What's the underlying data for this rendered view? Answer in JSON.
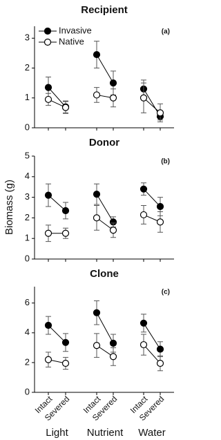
{
  "chart_data": {
    "type": "line",
    "y_label": "Biomass (g)",
    "legend": "upper left",
    "categories": [
      "Intact",
      "Severed",
      "Intact",
      "Severed",
      "Intact",
      "Severed"
    ],
    "groups": [
      "Light",
      "Nutrient",
      "Water"
    ],
    "series": [
      {
        "name": "Invasive",
        "color": "#000000",
        "marker": "filled"
      },
      {
        "name": "Native",
        "color": "#000000",
        "marker": "open"
      }
    ],
    "panels": [
      {
        "title": "Recipient",
        "label": "(a)",
        "ylim": [
          0,
          3.4
        ],
        "yticks": [
          0,
          1,
          2,
          3
        ],
        "series": [
          {
            "values": [
              1.35,
              0.7,
              2.45,
              1.5,
              1.3,
              0.38
            ],
            "errors": [
              0.35,
              0.2,
              0.45,
              0.4,
              0.3,
              0.12
            ]
          },
          {
            "values": [
              0.95,
              0.68,
              1.1,
              1.0,
              1.0,
              0.5
            ],
            "errors": [
              0.2,
              0.2,
              0.25,
              0.3,
              0.5,
              0.3
            ]
          }
        ]
      },
      {
        "title": "Donor",
        "label": "(b)",
        "ylim": [
          0,
          5
        ],
        "yticks": [
          0,
          1,
          2,
          3,
          4,
          5
        ],
        "series": [
          {
            "values": [
              3.1,
              2.35,
              3.15,
              1.8,
              3.4,
              2.55
            ],
            "errors": [
              0.55,
              0.4,
              0.5,
              0.25,
              0.3,
              0.45
            ]
          },
          {
            "values": [
              1.25,
              1.25,
              2.0,
              1.4,
              2.15,
              1.8
            ],
            "errors": [
              0.4,
              0.25,
              0.6,
              0.35,
              0.45,
              0.5
            ]
          }
        ]
      },
      {
        "title": "Clone",
        "label": "(c)",
        "ylim": [
          0,
          7.1
        ],
        "yticks": [
          0,
          2,
          4,
          6
        ],
        "series": [
          {
            "values": [
              4.5,
              3.35,
              5.35,
              3.3,
              4.65,
              2.9
            ],
            "errors": [
              0.6,
              0.6,
              0.8,
              0.6,
              0.6,
              0.5
            ]
          },
          {
            "values": [
              2.2,
              1.95,
              3.15,
              2.4,
              3.2,
              1.95
            ],
            "errors": [
              0.5,
              0.4,
              0.8,
              0.6,
              0.7,
              0.5
            ]
          }
        ]
      }
    ]
  }
}
